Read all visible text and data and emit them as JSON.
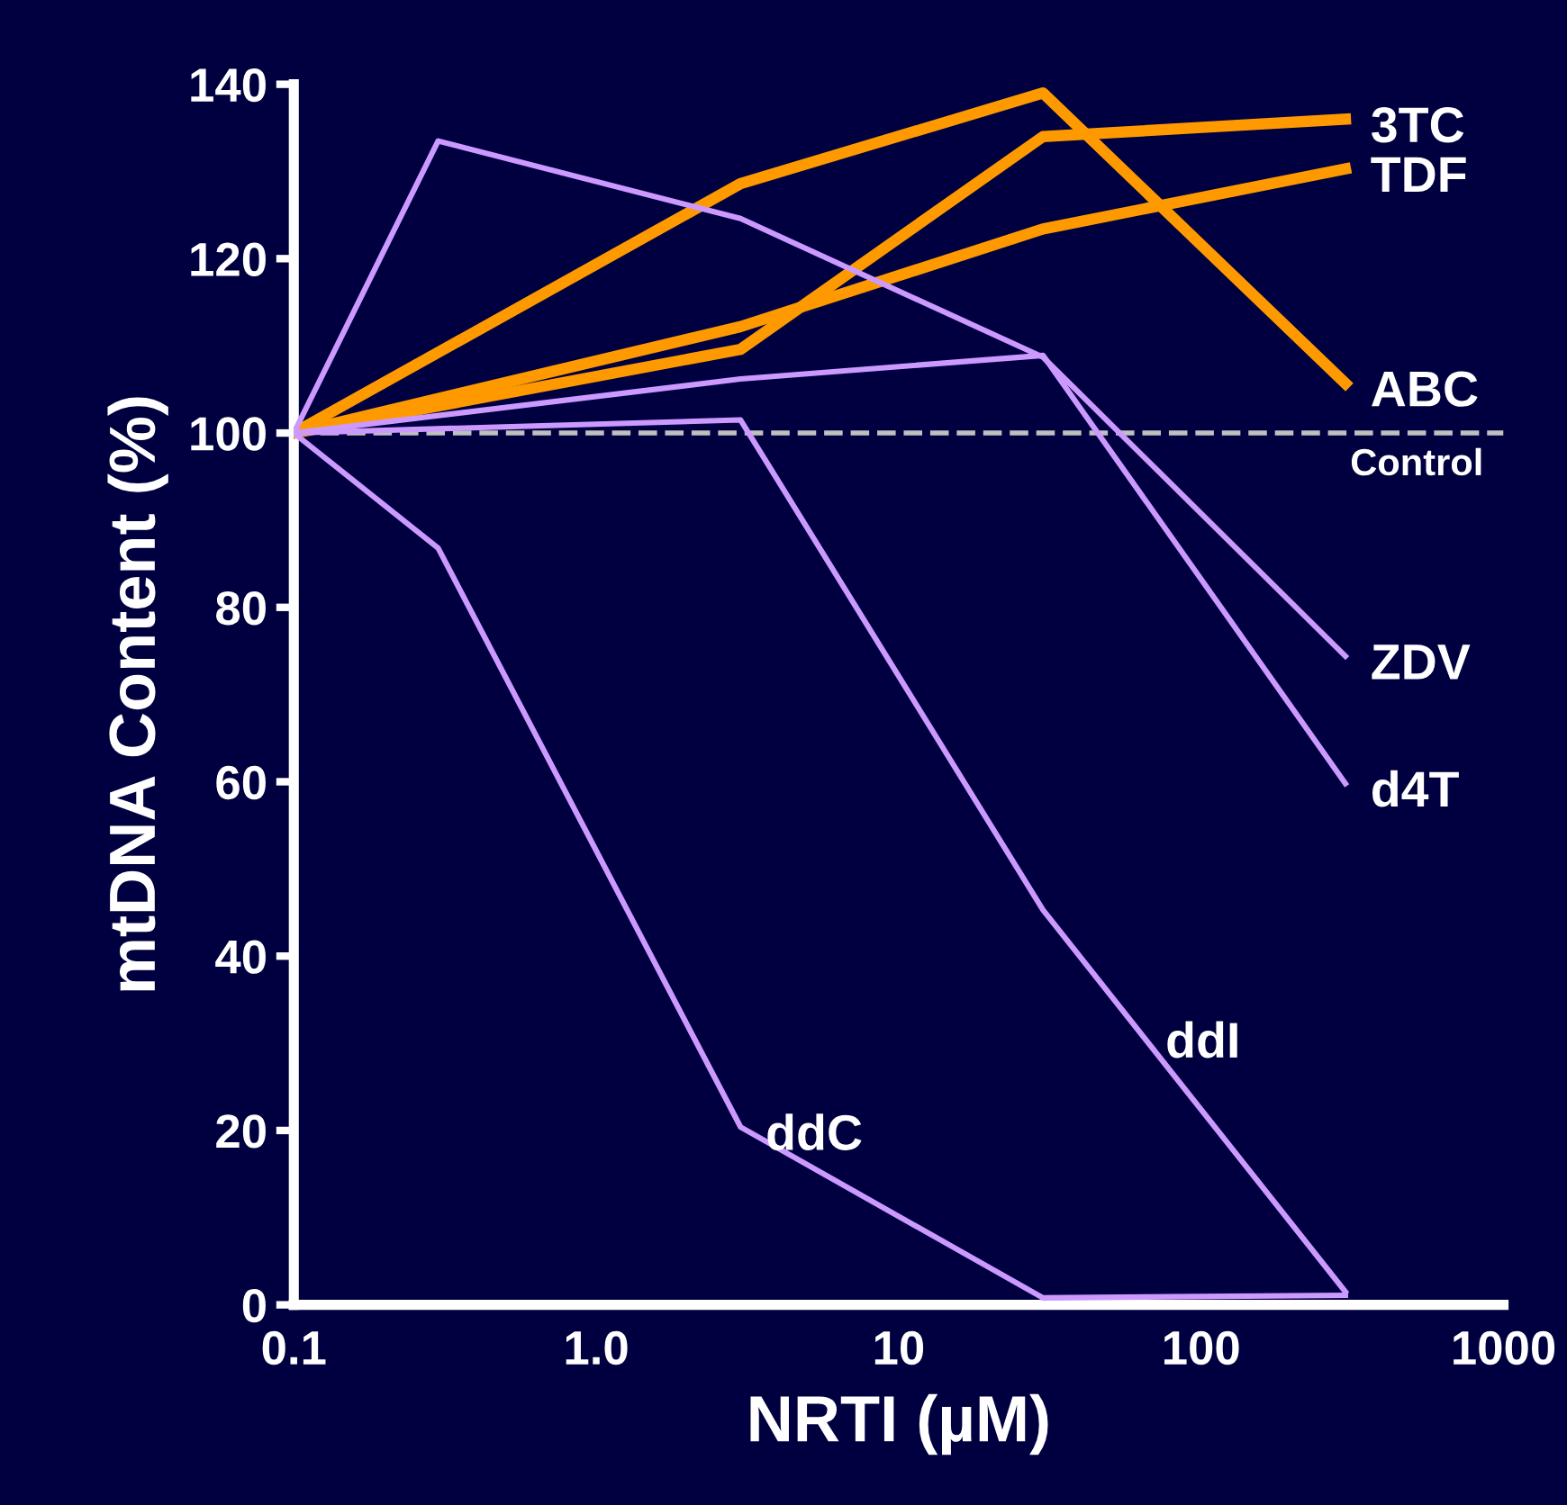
{
  "chart_data": {
    "type": "line",
    "xlabel": "NRTI (µM)",
    "ylabel": "mtDNA Content (%)",
    "log": "x",
    "xlim": [
      0.1,
      1000
    ],
    "xticks": [
      {
        "value": 0.1,
        "label": "0.1"
      },
      {
        "value": 1,
        "label": "1.0"
      },
      10,
      100,
      1000
    ],
    "ylim": [
      0,
      140
    ],
    "yticks": [
      0,
      20,
      40,
      60,
      80,
      100,
      120,
      140
    ],
    "grid": false,
    "legend": false,
    "marker": "none",
    "line_style": "solid",
    "series": [
      {
        "color": "#ff9900",
        "x": [
          0.1,
          3,
          30,
          300
        ],
        "values": [
          100,
          109.6,
          134,
          136
        ]
      },
      {
        "color": "#ff9900",
        "x": [
          0.1,
          3,
          30,
          300
        ],
        "values": [
          100,
          112.2,
          123.4,
          130.3
        ]
      },
      {
        "color": "#ff9900",
        "x": [
          0.1,
          3,
          30,
          300
        ],
        "values": [
          100,
          128.6,
          139,
          105.7
        ]
      },
      {
        "color": "#cc99ff",
        "x": [
          0.1,
          0.3,
          3,
          30,
          300
        ],
        "values": [
          100,
          133.5,
          124.6,
          108.7,
          74.4
        ]
      },
      {
        "color": "#cc99ff",
        "x": [
          0.1,
          3,
          30,
          300
        ],
        "values": [
          100,
          106.2,
          108.9,
          59.8
        ]
      },
      {
        "color": "#cc99ff",
        "x": [
          0.1,
          3,
          30,
          300
        ],
        "values": [
          100,
          101.5,
          45.3,
          1.5
        ]
      },
      {
        "color": "#cc99ff",
        "x": [
          0.1,
          0.3,
          3,
          30,
          300
        ],
        "values": [
          100,
          86.8,
          20.4,
          0.8,
          1.1
        ]
      }
    ],
    "ref_lines": [
      {
        "axis": "y",
        "value": 100,
        "label": "Control",
        "color": "#c0c0c0",
        "line_style": "dashed"
      }
    ],
    "annotations": [
      {
        "text": "3TC",
        "x": 300,
        "y": 136
      },
      {
        "text": "TDF",
        "x": 300,
        "y": 130.3
      },
      {
        "text": "ABC",
        "x": 300,
        "y": 105.7
      },
      {
        "text": "ZDV",
        "x": 300,
        "y": 74.4
      },
      {
        "text": "d4T",
        "x": 300,
        "y": 59.8
      },
      {
        "text": "ddI",
        "x": 63,
        "y": 31
      },
      {
        "text": "ddC",
        "x": 3,
        "y": 20.4
      }
    ]
  }
}
